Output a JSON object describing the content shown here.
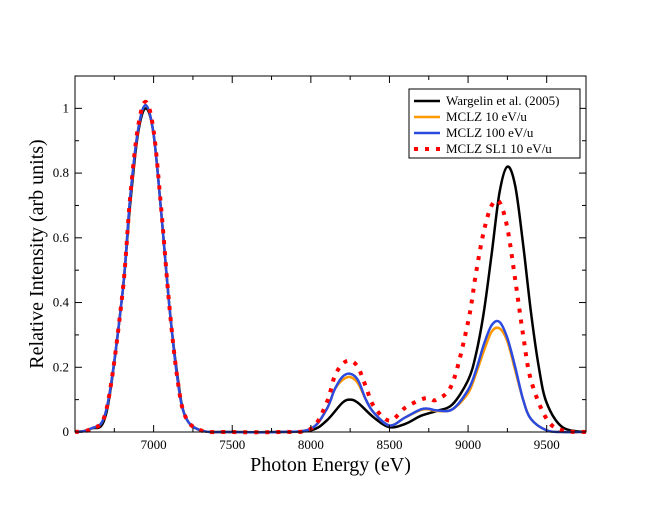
{
  "chart_data": {
    "type": "line",
    "title": "",
    "xlabel": "Photon Energy (eV)",
    "ylabel": "Relative Intensity (arb units)",
    "xlim": [
      6500,
      9750
    ],
    "ylim": [
      0,
      1.1
    ],
    "x_ticks": [
      7000,
      7500,
      8000,
      8500,
      9000,
      9500
    ],
    "x_tick_labels": [
      "7000",
      "7500",
      "8000",
      "8500",
      "9000",
      "9500"
    ],
    "y_ticks": [
      0,
      0.2,
      0.4,
      0.6,
      0.8,
      1.0
    ],
    "y_tick_labels": [
      "0",
      "0.2",
      "0.4",
      "0.6",
      "0.8",
      "1"
    ],
    "grid": false,
    "legend_position": "top-right",
    "series": [
      {
        "name": "Wargelin et al. (2005)",
        "color": "#000000",
        "style": "solid",
        "x": [
          6500,
          6600,
          6700,
          6800,
          6850,
          6900,
          6950,
          7000,
          7050,
          7100,
          7150,
          7200,
          7300,
          7500,
          7800,
          8000,
          8100,
          8200,
          8250,
          8300,
          8400,
          8500,
          8600,
          8700,
          8800,
          8900,
          9000,
          9050,
          9100,
          9150,
          9200,
          9250,
          9300,
          9350,
          9400,
          9450,
          9500,
          9600,
          9750
        ],
        "y": [
          0.0,
          0.01,
          0.06,
          0.42,
          0.7,
          0.92,
          1.0,
          0.92,
          0.67,
          0.39,
          0.18,
          0.05,
          0.005,
          0.0,
          0.0,
          0.005,
          0.035,
          0.09,
          0.1,
          0.09,
          0.045,
          0.015,
          0.025,
          0.05,
          0.065,
          0.085,
          0.16,
          0.24,
          0.37,
          0.55,
          0.74,
          0.82,
          0.76,
          0.58,
          0.37,
          0.2,
          0.09,
          0.015,
          0.0
        ]
      },
      {
        "name": "MCLZ 10 eV/u",
        "color": "#ff9900",
        "style": "solid",
        "x": [
          6500,
          6600,
          6700,
          6800,
          6850,
          6900,
          6950,
          7000,
          7050,
          7100,
          7150,
          7200,
          7300,
          7500,
          7800,
          8000,
          8100,
          8150,
          8200,
          8250,
          8300,
          8350,
          8400,
          8500,
          8600,
          8700,
          8750,
          8800,
          8900,
          9000,
          9050,
          9100,
          9150,
          9200,
          9250,
          9300,
          9350,
          9400,
          9500,
          9600,
          9750
        ],
        "y": [
          0.0,
          0.01,
          0.07,
          0.42,
          0.72,
          0.93,
          1.01,
          0.92,
          0.67,
          0.39,
          0.17,
          0.05,
          0.005,
          0.0,
          0.0,
          0.01,
          0.07,
          0.13,
          0.16,
          0.17,
          0.15,
          0.1,
          0.06,
          0.02,
          0.045,
          0.068,
          0.07,
          0.065,
          0.07,
          0.12,
          0.18,
          0.25,
          0.31,
          0.32,
          0.28,
          0.19,
          0.1,
          0.04,
          0.005,
          0.0,
          0.0
        ]
      },
      {
        "name": "MCLZ 100 eV/u",
        "color": "#2b4ae0",
        "style": "solid",
        "x": [
          6500,
          6600,
          6700,
          6800,
          6850,
          6900,
          6950,
          7000,
          7050,
          7100,
          7150,
          7200,
          7300,
          7500,
          7800,
          8000,
          8100,
          8150,
          8200,
          8250,
          8300,
          8350,
          8400,
          8500,
          8600,
          8700,
          8750,
          8800,
          8900,
          9000,
          9050,
          9100,
          9150,
          9200,
          9250,
          9300,
          9350,
          9400,
          9500,
          9600,
          9750
        ],
        "y": [
          0.0,
          0.01,
          0.07,
          0.42,
          0.72,
          0.93,
          1.01,
          0.92,
          0.67,
          0.39,
          0.17,
          0.05,
          0.005,
          0.0,
          0.0,
          0.01,
          0.07,
          0.13,
          0.17,
          0.18,
          0.16,
          0.1,
          0.06,
          0.02,
          0.045,
          0.07,
          0.072,
          0.067,
          0.07,
          0.13,
          0.19,
          0.27,
          0.33,
          0.34,
          0.29,
          0.2,
          0.1,
          0.04,
          0.005,
          0.0,
          0.0
        ]
      },
      {
        "name": "MCLZ SL1 10 eV/u",
        "color": "#ff0000",
        "style": "dotted",
        "x": [
          6500,
          6600,
          6700,
          6800,
          6850,
          6900,
          6950,
          7000,
          7050,
          7100,
          7150,
          7200,
          7300,
          7500,
          7800,
          8000,
          8100,
          8150,
          8200,
          8250,
          8300,
          8350,
          8400,
          8500,
          8600,
          8700,
          8750,
          8800,
          8900,
          9000,
          9050,
          9100,
          9150,
          9200,
          9250,
          9300,
          9350,
          9400,
          9500,
          9600,
          9750
        ],
        "y": [
          0.0,
          0.01,
          0.07,
          0.42,
          0.72,
          0.94,
          1.02,
          0.93,
          0.68,
          0.39,
          0.17,
          0.05,
          0.005,
          0.0,
          0.0,
          0.01,
          0.09,
          0.17,
          0.21,
          0.22,
          0.2,
          0.14,
          0.08,
          0.035,
          0.075,
          0.1,
          0.105,
          0.1,
          0.15,
          0.34,
          0.49,
          0.62,
          0.7,
          0.71,
          0.63,
          0.47,
          0.3,
          0.16,
          0.04,
          0.005,
          0.0
        ]
      }
    ]
  }
}
